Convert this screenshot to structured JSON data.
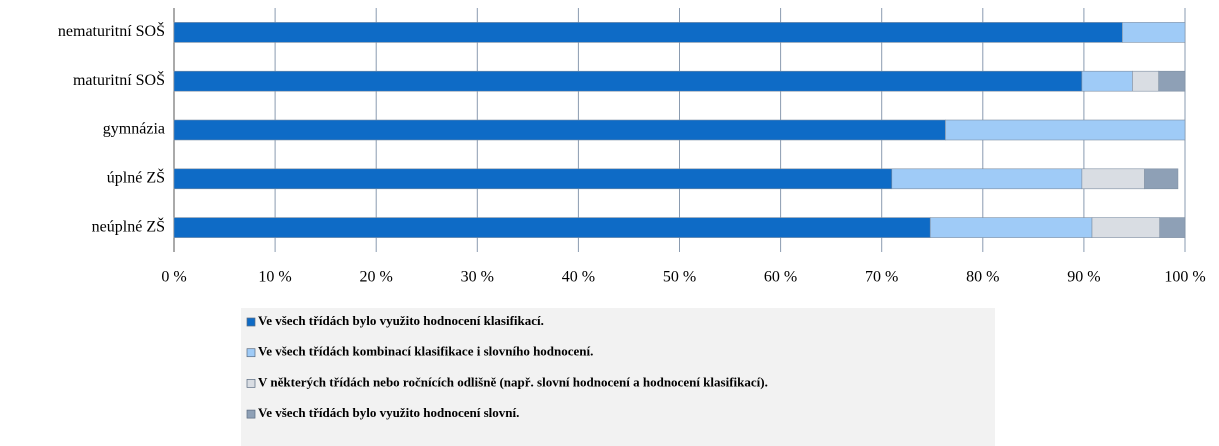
{
  "chart_data": {
    "type": "stacked-barh",
    "categories": [
      "nematuritní SOŠ",
      "maturitní SOŠ",
      "gymnázia",
      "úplné ZŠ",
      "neúplné ZŠ"
    ],
    "series": [
      {
        "name": "Ve všech třídách bylo využito hodnocení klasifikací.",
        "color": "#0e6bc6",
        "values": [
          93.8,
          89.8,
          76.3,
          71.0,
          74.8
        ]
      },
      {
        "name": "Ve všech třídách kombinací klasifikace i slovního hodnocení.",
        "color": "#9fcbf7",
        "values": [
          6.2,
          5.0,
          23.7,
          18.8,
          16.0
        ]
      },
      {
        "name": "V některých třídách nebo ročnících odlišně (např. slovní hodnocení a hodnocení klasifikací).",
        "color": "#d9dde3",
        "values": [
          0,
          2.6,
          0,
          6.2,
          6.7
        ]
      },
      {
        "name": "Ve všech třídách bylo využito hodnocení slovní.",
        "color": "#8ea0b6",
        "values": [
          0,
          2.6,
          0,
          3.3,
          2.5
        ]
      }
    ],
    "xlim": [
      0,
      100
    ],
    "xticks": [
      {
        "value": 0,
        "label": "0 %"
      },
      {
        "value": 10,
        "label": "10 %"
      },
      {
        "value": 20,
        "label": "20 %"
      },
      {
        "value": 30,
        "label": "30 %"
      },
      {
        "value": 40,
        "label": "40 %"
      },
      {
        "value": 50,
        "label": "50 %"
      },
      {
        "value": 60,
        "label": "60 %"
      },
      {
        "value": 70,
        "label": "70 %"
      },
      {
        "value": 80,
        "label": "80 %"
      },
      {
        "value": 90,
        "label": "90 %"
      },
      {
        "value": 100,
        "label": "100 %"
      }
    ],
    "grid": true
  }
}
